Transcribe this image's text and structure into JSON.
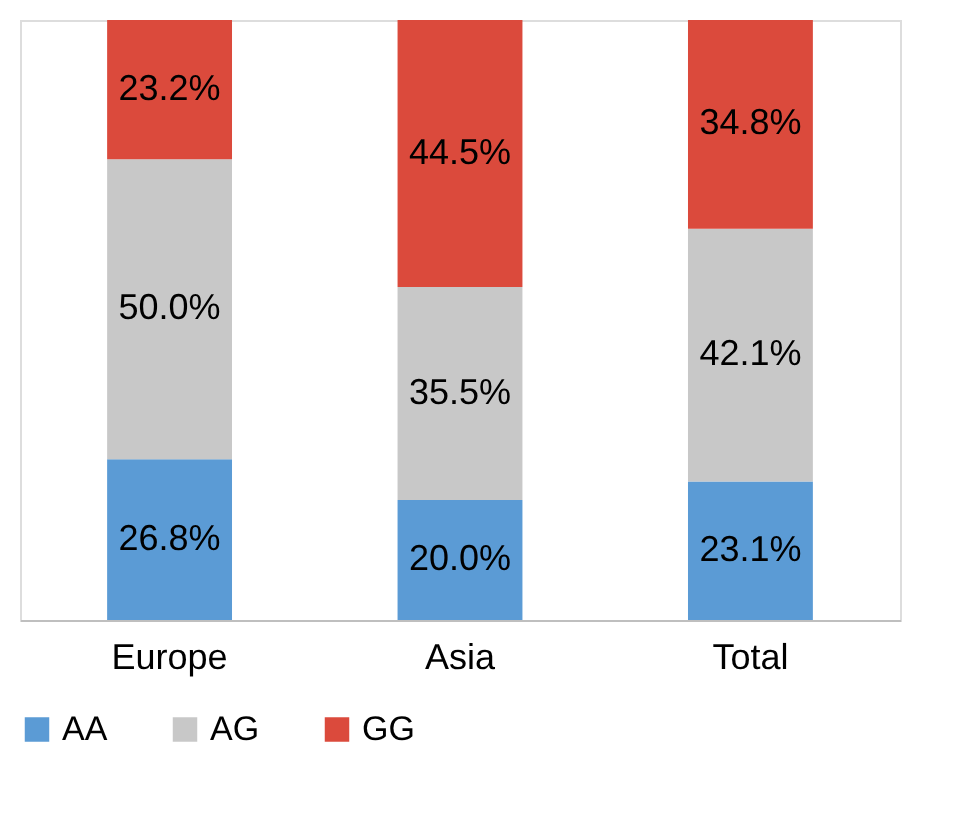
{
  "chart_data": {
    "type": "bar",
    "stacked": true,
    "categories": [
      "Europe",
      "Asia",
      "Total"
    ],
    "series": [
      {
        "name": "AA",
        "color": "#5b9bd5",
        "values": [
          26.8,
          20.0,
          23.1
        ],
        "value_labels": [
          "26.8%",
          "20.0%",
          "23.1%"
        ]
      },
      {
        "name": "AG",
        "color": "#c8c8c8",
        "values": [
          50.0,
          35.5,
          42.1
        ],
        "value_labels": [
          "50.0%",
          "35.5%",
          "42.1%"
        ]
      },
      {
        "name": "GG",
        "color": "#db4a3c",
        "values": [
          23.2,
          44.5,
          34.8
        ],
        "value_labels": [
          "23.2%",
          "44.5%",
          "34.8%"
        ]
      }
    ],
    "legend": "bottom",
    "grid": false
  }
}
